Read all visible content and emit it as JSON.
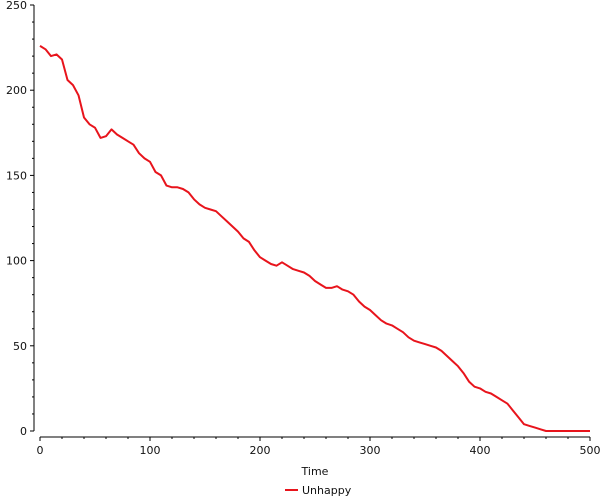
{
  "chart_data": {
    "type": "line",
    "title": "",
    "xlabel": "Time",
    "ylabel": "",
    "xlim": [
      0,
      500
    ],
    "ylim": [
      0,
      250
    ],
    "x_ticks": [
      0,
      100,
      200,
      300,
      400,
      500
    ],
    "y_ticks": [
      0,
      50,
      100,
      150,
      200,
      250
    ],
    "x_tick_labels": [
      "0",
      "100",
      "200",
      "300",
      "400",
      "500"
    ],
    "y_tick_labels": [
      "0",
      "50",
      "100",
      "150",
      "200",
      "250"
    ],
    "grid": false,
    "legend_position": "bottom",
    "series": [
      {
        "name": "Unhappy",
        "color": "#e8141c",
        "x": [
          0,
          5,
          10,
          15,
          20,
          25,
          30,
          35,
          40,
          45,
          50,
          55,
          60,
          65,
          70,
          75,
          80,
          85,
          90,
          95,
          100,
          105,
          110,
          115,
          120,
          125,
          130,
          135,
          140,
          145,
          150,
          155,
          160,
          165,
          170,
          175,
          180,
          185,
          190,
          195,
          200,
          205,
          210,
          215,
          220,
          225,
          230,
          235,
          240,
          245,
          250,
          255,
          260,
          265,
          270,
          275,
          280,
          285,
          290,
          295,
          300,
          305,
          310,
          315,
          320,
          325,
          330,
          335,
          340,
          345,
          350,
          355,
          360,
          365,
          370,
          375,
          380,
          385,
          390,
          395,
          400,
          405,
          410,
          415,
          420,
          425,
          430,
          435,
          440,
          445,
          450,
          455,
          460,
          465,
          470,
          475,
          480,
          485,
          490,
          495,
          500
        ],
        "values": [
          226,
          224,
          220,
          221,
          218,
          206,
          203,
          197,
          184,
          180,
          178,
          172,
          173,
          177,
          174,
          172,
          170,
          168,
          163,
          160,
          158,
          152,
          150,
          144,
          143,
          143,
          142,
          140,
          136,
          133,
          131,
          130,
          129,
          126,
          123,
          120,
          117,
          113,
          111,
          106,
          102,
          100,
          98,
          97,
          99,
          97,
          95,
          94,
          93,
          91,
          88,
          86,
          84,
          84,
          85,
          83,
          82,
          80,
          76,
          73,
          71,
          68,
          65,
          63,
          62,
          60,
          58,
          55,
          53,
          52,
          51,
          50,
          49,
          47,
          44,
          41,
          38,
          34,
          29,
          26,
          25,
          23,
          22,
          20,
          18,
          16,
          12,
          8,
          4,
          3,
          2,
          1,
          0,
          0,
          0,
          0,
          0,
          0,
          0,
          0,
          0
        ]
      }
    ]
  }
}
